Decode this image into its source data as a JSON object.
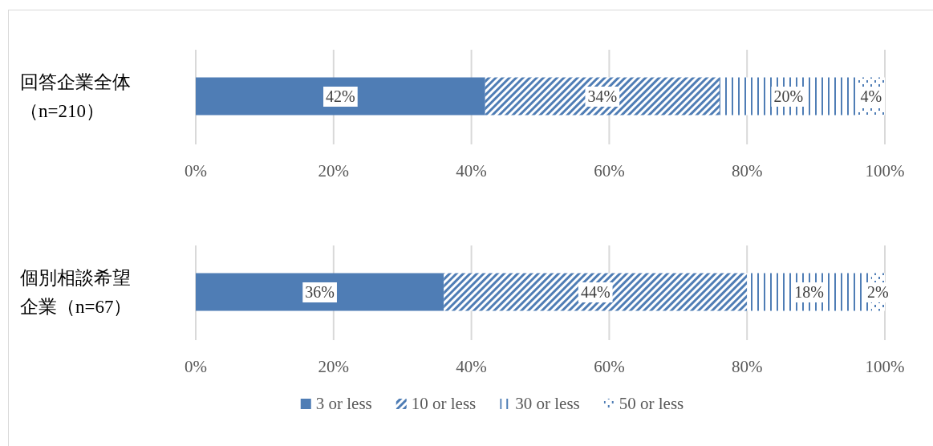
{
  "chart_data": [
    {
      "type": "bar",
      "orientation": "horizontal",
      "stacked": true,
      "categories": [
        "回答企業全体（n=210）"
      ],
      "xlim": [
        0,
        100
      ],
      "xticks": [
        {
          "value": 0,
          "label": "0%"
        },
        {
          "value": 20,
          "label": "20%"
        },
        {
          "value": 40,
          "label": "40%"
        },
        {
          "value": 60,
          "label": "60%"
        },
        {
          "value": 80,
          "label": "80%"
        },
        {
          "value": 100,
          "label": "100%"
        }
      ],
      "grid": "x",
      "legend": false,
      "series": [
        {
          "color": "#4f7db5",
          "values": [
            42
          ],
          "value_labels": [
            "42%"
          ]
        },
        {
          "color": "#4f7db5",
          "values": [
            34
          ],
          "value_labels": [
            "34%"
          ]
        },
        {
          "color": "#4f7db5",
          "values": [
            20
          ],
          "value_labels": [
            "20%"
          ]
        },
        {
          "color": "#4f7db5",
          "values": [
            4
          ],
          "value_labels": [
            "4%"
          ]
        }
      ]
    },
    {
      "type": "bar",
      "orientation": "horizontal",
      "stacked": true,
      "categories": [
        "個別相談希望企業（n=67）"
      ],
      "xlim": [
        0,
        100
      ],
      "xticks": [
        {
          "value": 0,
          "label": "0%"
        },
        {
          "value": 20,
          "label": "20%"
        },
        {
          "value": 40,
          "label": "40%"
        },
        {
          "value": 60,
          "label": "60%"
        },
        {
          "value": 80,
          "label": "80%"
        },
        {
          "value": 100,
          "label": "100%"
        }
      ],
      "grid": "x",
      "legend": "bottom",
      "series": [
        {
          "name": "3 or less",
          "color": "#4f7db5",
          "values": [
            36
          ],
          "value_labels": [
            "36%"
          ]
        },
        {
          "name": "10 or less",
          "color": "#4f7db5",
          "values": [
            44
          ],
          "value_labels": [
            "44%"
          ]
        },
        {
          "name": "30 or less",
          "color": "#4f7db5",
          "values": [
            18
          ],
          "value_labels": [
            "18%"
          ]
        },
        {
          "name": "50 or less",
          "color": "#4f7db5",
          "values": [
            2
          ],
          "value_labels": [
            "2%"
          ]
        }
      ]
    }
  ]
}
